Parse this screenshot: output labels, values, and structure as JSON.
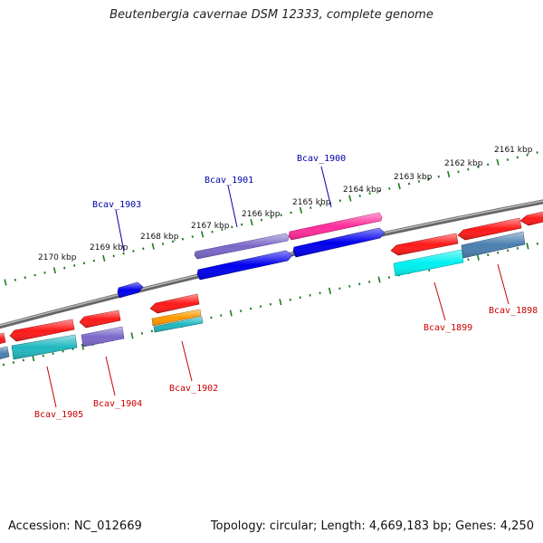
{
  "title": "Beutenbergia cavernae DSM 12333, complete genome",
  "footer": {
    "accession": "Accession: NC_012669",
    "summary": "Topology: circular; Length: 4,669,183 bp; Genes: 4,250"
  },
  "ruler_labels": [
    "2161 kbp",
    "2162 kbp",
    "2163 kbp",
    "2164 kbp",
    "2165 kbp",
    "2166 kbp",
    "2167 kbp",
    "2168 kbp",
    "2169 kbp",
    "2170 kbp"
  ],
  "gene_labels": {
    "top": [
      "Bcav_1900",
      "Bcav_1901",
      "Bcav_1903"
    ],
    "bottom": [
      "Bcav_1898",
      "Bcav_1899",
      "Bcav_1902",
      "Bcav_1904",
      "Bcav_1905"
    ]
  },
  "colors": {
    "backbone": "#888888",
    "ruler_tick": "#1e7a1e",
    "top_label": "#0000aa",
    "bottom_label": "#cc0000",
    "red": "#ff1a1a",
    "blue": "#0000ee",
    "purple": "#7b68c8",
    "magenta": "#ff2d9b",
    "cyan": "#00d6e0",
    "teal": "#20b8c0",
    "steel": "#4a7fb0",
    "orange": "#ff9a00"
  }
}
